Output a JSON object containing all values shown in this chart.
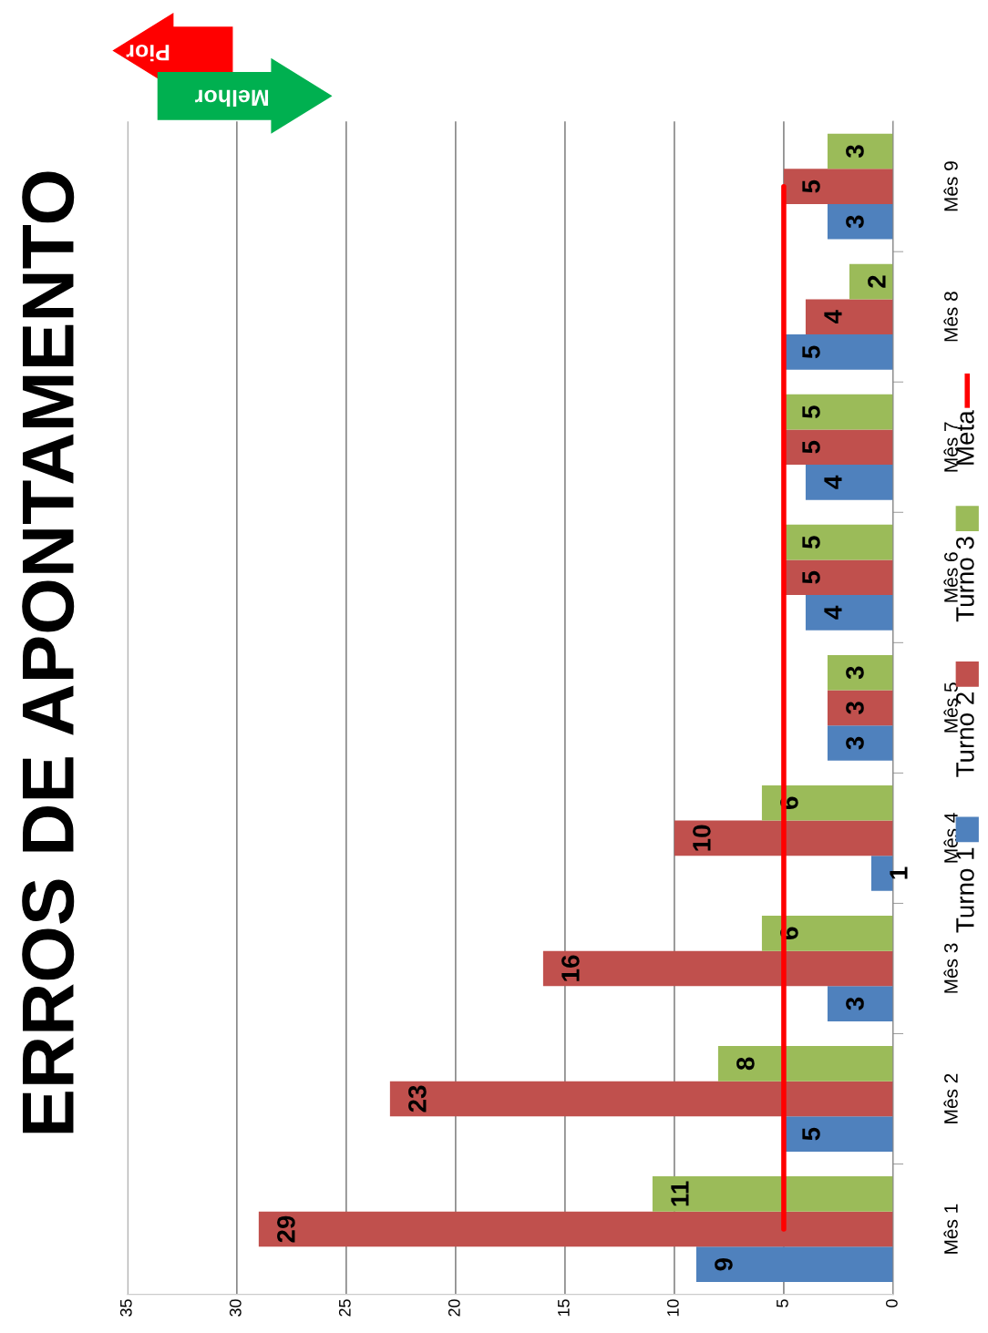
{
  "chart_data": {
    "type": "bar",
    "orientation": "horizontal",
    "title": "ERROS DE APONTAMENTO",
    "categories": [
      "Mês 9",
      "Mês 8",
      "Mês 7",
      "Mês 6",
      "Mês 5",
      "Mês 4",
      "Mês 3",
      "Mês 2",
      "Mês 1"
    ],
    "series": [
      {
        "name": "Turno 1",
        "color": "#4f81bd",
        "values": [
          3,
          5,
          4,
          4,
          3,
          1,
          3,
          5,
          9
        ],
        "value_labels": [
          "3",
          "5",
          "4",
          "4",
          "3",
          "1",
          "3",
          "5",
          "9"
        ]
      },
      {
        "name": "Turno 2",
        "color": "#c0504d",
        "values": [
          5,
          4,
          5,
          5,
          3,
          10,
          16,
          23,
          29
        ],
        "value_labels": [
          "5",
          "4",
          "5",
          "5",
          "3",
          "10",
          "16",
          "23",
          "29"
        ]
      },
      {
        "name": "Turno 3",
        "color": "#9bbb59",
        "values": [
          3,
          2,
          5,
          5,
          3,
          6,
          6,
          8,
          11
        ],
        "value_labels": [
          "3",
          "2",
          "5",
          "5",
          "3",
          "6",
          "6",
          "8",
          "11"
        ]
      },
      {
        "name": "Meta",
        "type": "line",
        "color": "#ff0000",
        "values": [
          5,
          5,
          5,
          5,
          5,
          5,
          5,
          5,
          5
        ]
      }
    ],
    "xlim": [
      35,
      0
    ],
    "xticks": [
      0,
      5,
      10,
      15,
      20,
      25,
      30,
      35
    ],
    "grid": "x",
    "legend": "right",
    "annotations": [
      "Pior",
      "Melhor"
    ]
  }
}
